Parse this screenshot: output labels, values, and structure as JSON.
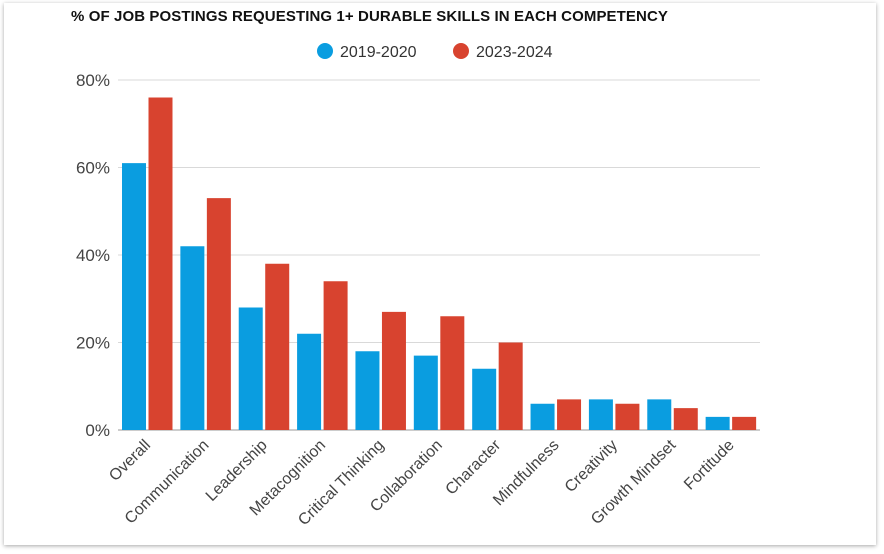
{
  "chart_data": {
    "type": "bar",
    "title": "% OF JOB POSTINGS REQUESTING 1+ DURABLE SKILLS IN EACH COMPETENCY",
    "xlabel": "",
    "ylabel": "",
    "ylim": [
      0,
      80
    ],
    "yticks": [
      0,
      20,
      40,
      60,
      80
    ],
    "ytick_labels": [
      "0%",
      "20%",
      "40%",
      "60%",
      "80%"
    ],
    "grid": true,
    "legend_position": "top-center",
    "categories": [
      "Overall",
      "Communication",
      "Leadership",
      "Metacognition",
      "Critical Thinking",
      "Collaboration",
      "Character",
      "Mindfulness",
      "Creativity",
      "Growth Mindset",
      "Fortitude"
    ],
    "series": [
      {
        "name": "2019-2020",
        "color": "#0a9de0",
        "values": [
          61,
          42,
          28,
          22,
          18,
          17,
          14,
          6,
          7,
          7,
          3
        ]
      },
      {
        "name": "2023-2024",
        "color": "#d8432f",
        "values": [
          76,
          53,
          38,
          34,
          27,
          26,
          20,
          7,
          6,
          5,
          3
        ]
      }
    ]
  }
}
